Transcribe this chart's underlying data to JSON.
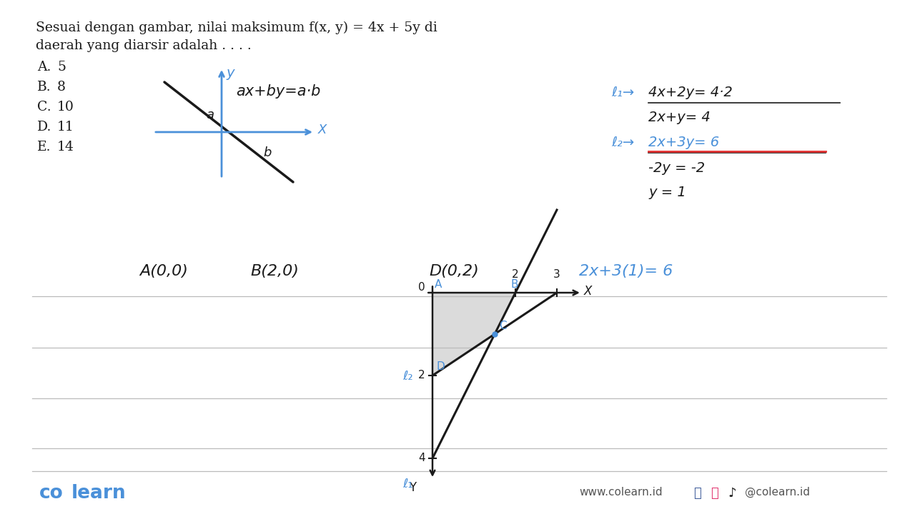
{
  "bg_color": "#ffffff",
  "title_line1": "Sesuai dengan gambar, nilai maksimum f(x, y) = 4x + 5y di",
  "title_line2": "daerah yang diarsir adalah . . . .",
  "options": [
    [
      "A.",
      "5"
    ],
    [
      "B.",
      "8"
    ],
    [
      "C.",
      "10"
    ],
    [
      "D.",
      "11"
    ],
    [
      "E.",
      "14"
    ]
  ],
  "blue": "#4a90d9",
  "black": "#1a1a1a",
  "red_line": "#e03030",
  "gray_shade": "#c8c8c8",
  "gray_line": "#bbbbbb",
  "footer_brand": "co learn",
  "footer_website": "www.colearn.id",
  "footer_social": "@colearn.id"
}
